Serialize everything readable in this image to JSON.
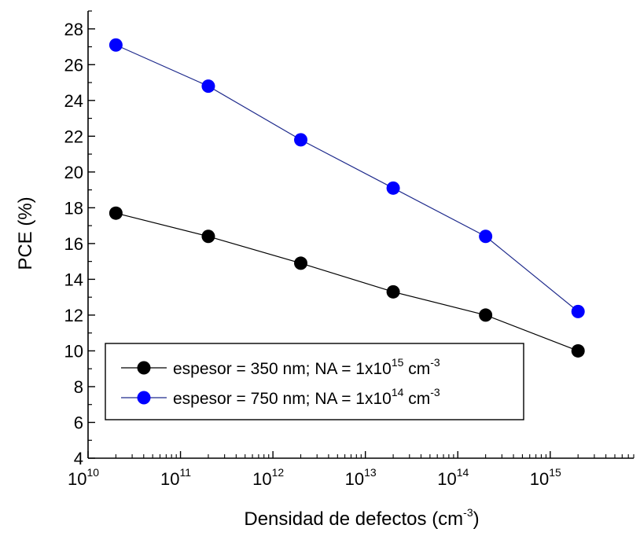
{
  "chart_data": {
    "type": "line",
    "xlabel": "Densidad de defectos (cm",
    "xlabel_sup": "-3",
    "xlabel_close": ")",
    "ylabel": "PCE (%)",
    "x_scale": "log",
    "xlim": [
      10000000000.0,
      8000000000000000.0
    ],
    "ylim": [
      4,
      29
    ],
    "x_ticks": [
      {
        "base": "10",
        "exp": "10",
        "value": 10000000000.0
      },
      {
        "base": "10",
        "exp": "11",
        "value": 100000000000.0
      },
      {
        "base": "10",
        "exp": "12",
        "value": 1000000000000.0
      },
      {
        "base": "10",
        "exp": "13",
        "value": 10000000000000.0
      },
      {
        "base": "10",
        "exp": "14",
        "value": 100000000000000.0
      },
      {
        "base": "10",
        "exp": "15",
        "value": 1000000000000000.0
      }
    ],
    "y_ticks": [
      "4",
      "6",
      "8",
      "10",
      "12",
      "14",
      "16",
      "18",
      "20",
      "22",
      "24",
      "26",
      "28"
    ],
    "grid": false,
    "legend_position": "bottom-left",
    "series": [
      {
        "name_main": "espesor = 350 nm; NA = 1x10",
        "name_exp": "15",
        "name_unit": " cm",
        "name_unit_exp": "-3",
        "color": "#000000",
        "line_color": "#000000",
        "x": [
          20000000000.0,
          200000000000.0,
          2000000000000.0,
          20000000000000.0,
          200000000000000.0,
          2000000000000000.0
        ],
        "y": [
          17.7,
          16.4,
          14.9,
          13.3,
          12.0,
          10.0
        ]
      },
      {
        "name_main": "espesor = 750 nm; NA = 1x10",
        "name_exp": "14",
        "name_unit": " cm",
        "name_unit_exp": "-3",
        "color": "#0000ff",
        "line_color": "#1e2a8c",
        "x": [
          20000000000.0,
          200000000000.0,
          2000000000000.0,
          20000000000000.0,
          200000000000000.0,
          2000000000000000.0
        ],
        "y": [
          27.1,
          24.8,
          21.8,
          19.1,
          16.4,
          12.2
        ]
      }
    ]
  }
}
